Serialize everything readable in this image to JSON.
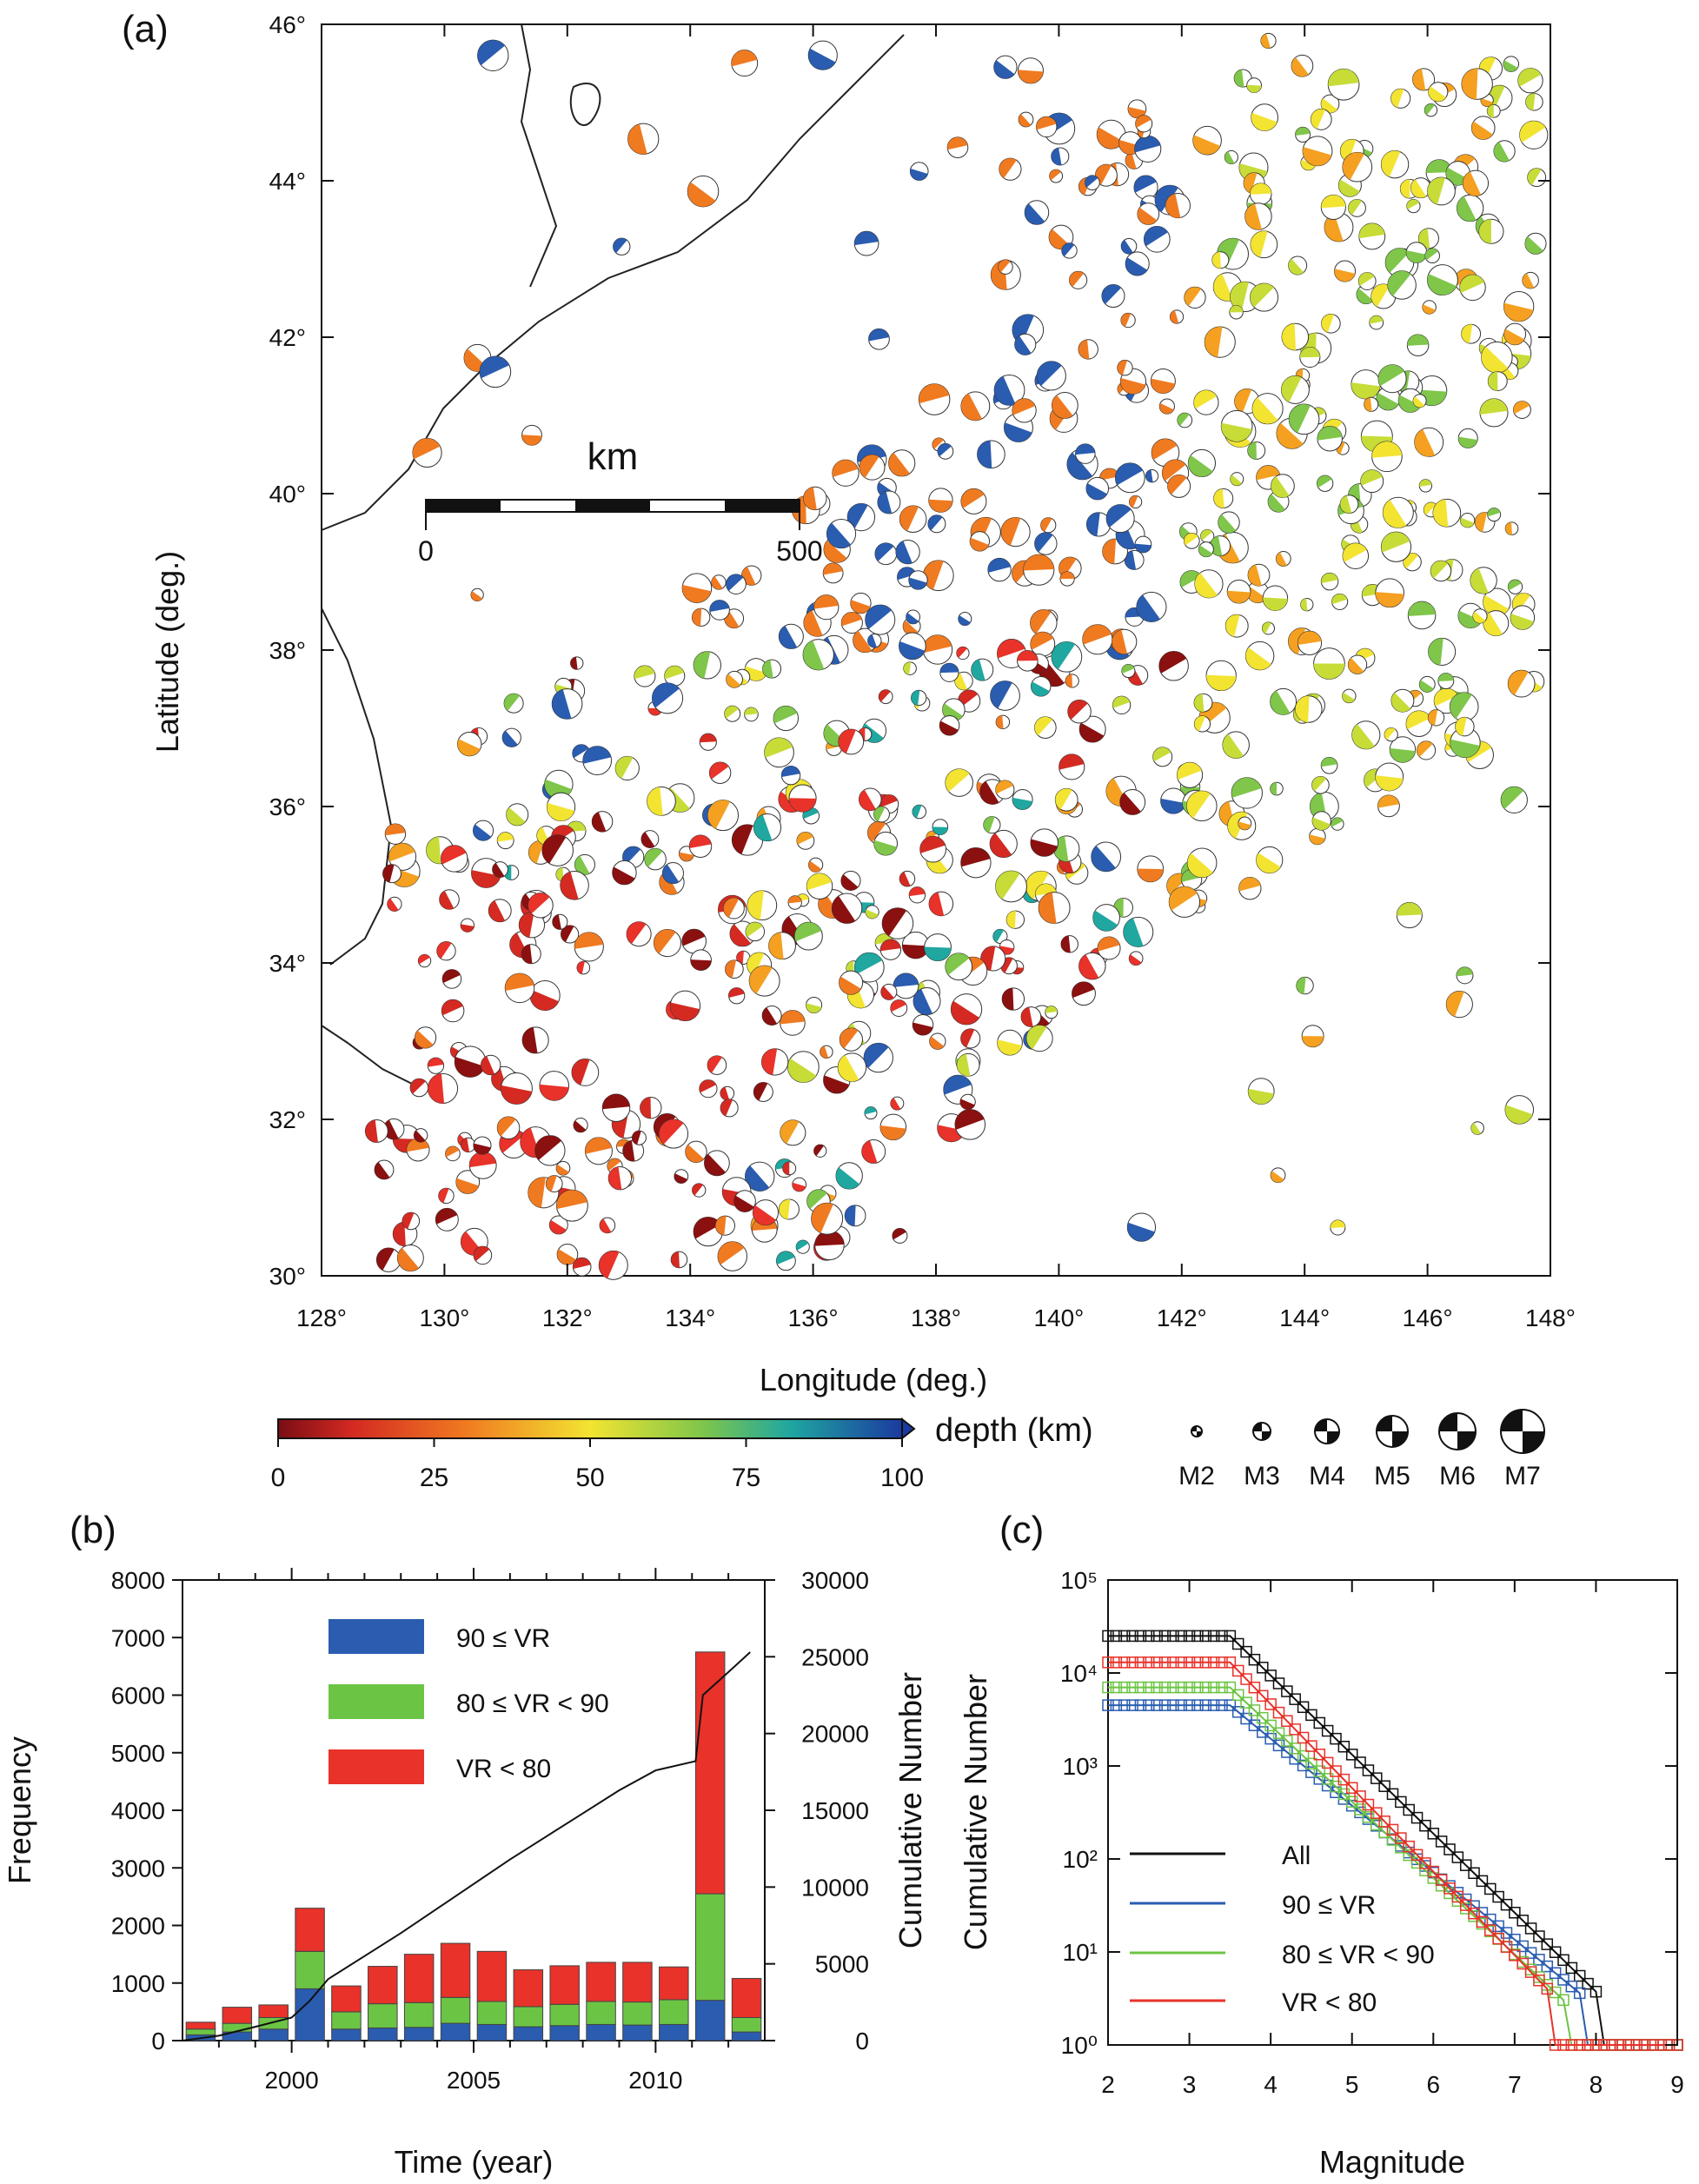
{
  "panels": {
    "a": {
      "label": "(a)",
      "xlabel": "Longitude (deg.)",
      "ylabel": "Latitude (deg.)",
      "x_ticks": [
        "128°",
        "130°",
        "132°",
        "134°",
        "136°",
        "138°",
        "140°",
        "142°",
        "144°",
        "146°",
        "148°"
      ],
      "y_ticks": [
        "30°",
        "32°",
        "34°",
        "36°",
        "38°",
        "40°",
        "42°",
        "44°",
        "46°"
      ],
      "scale_bar": {
        "unit": "km",
        "min_label": "0",
        "max_label": "500"
      },
      "colorbar": {
        "label": "depth (km)",
        "ticks": [
          "0",
          "25",
          "50",
          "75",
          "100"
        ]
      },
      "magnitude_legend": [
        "M2",
        "M3",
        "M4",
        "M5",
        "M6",
        "M7"
      ]
    },
    "b": {
      "label": "(b)",
      "xlabel": "Time (year)",
      "ylabel_left": "Frequency",
      "ylabel_right": "Cumulative Number",
      "x_ticks": [
        "2000",
        "2005",
        "2010"
      ],
      "y_ticks_left": [
        "0",
        "1000",
        "2000",
        "3000",
        "4000",
        "5000",
        "6000",
        "7000",
        "8000"
      ],
      "y_ticks_right": [
        "0",
        "5000",
        "10000",
        "15000",
        "20000",
        "25000",
        "30000"
      ],
      "legend": [
        "90 ≤ VR",
        "80 ≤ VR < 90",
        "VR < 80"
      ]
    },
    "c": {
      "label": "(c)",
      "xlabel": "Magnitude",
      "ylabel": "Cumulative Number",
      "x_ticks": [
        "2",
        "3",
        "4",
        "5",
        "6",
        "7",
        "8",
        "9"
      ],
      "y_ticks": [
        "10⁰",
        "10¹",
        "10²",
        "10³",
        "10⁴",
        "10⁵"
      ],
      "legend": [
        "All",
        "90 ≤ VR",
        "80 ≤ VR < 90",
        "VR < 80"
      ]
    }
  },
  "colors": {
    "vr90": "#2a5cb0",
    "vr80": "#6cc444",
    "vrlow": "#e8322a",
    "all": "#111111"
  },
  "chart_data": [
    {
      "type": "scatter",
      "title": "",
      "description_values": "focal mechanism solutions (beach balls) colored by depth",
      "xlim": [
        128,
        148
      ],
      "ylim": [
        30,
        46
      ],
      "depth_range_km": [
        0,
        100
      ]
    },
    {
      "type": "bar",
      "stacked": true,
      "categories": [
        1997,
        1998,
        1999,
        2000,
        2001,
        2002,
        2003,
        2004,
        2005,
        2006,
        2007,
        2008,
        2009,
        2010,
        2011,
        2012
      ],
      "series": [
        {
          "name": "90 ≤ VR",
          "values": [
            100,
            150,
            200,
            900,
            200,
            220,
            230,
            300,
            280,
            240,
            260,
            280,
            270,
            280,
            700,
            150
          ]
        },
        {
          "name": "80 ≤ VR < 90",
          "values": [
            100,
            150,
            200,
            650,
            300,
            420,
            430,
            450,
            400,
            350,
            370,
            400,
            400,
            430,
            1850,
            250
          ]
        },
        {
          "name": "VR < 80",
          "values": [
            120,
            280,
            220,
            750,
            450,
            650,
            840,
            940,
            870,
            640,
            670,
            680,
            690,
            570,
            4200,
            680
          ]
        }
      ],
      "cumulative_x": [
        1997,
        1998,
        1999,
        2000,
        2000.5,
        2001,
        2002,
        2003,
        2004,
        2005,
        2006,
        2007,
        2008,
        2009,
        2010,
        2011.1,
        2011.3,
        2012,
        2012.6
      ],
      "cumulative_y": [
        0,
        320,
        900,
        1500,
        2600,
        4000,
        5500,
        7000,
        8600,
        10200,
        11800,
        13300,
        14800,
        16300,
        17600,
        18200,
        22500,
        24000,
        25300
      ],
      "xlim": [
        1997,
        2013
      ],
      "ylim": [
        0,
        8000
      ],
      "ylim_right": [
        0,
        30000
      ]
    },
    {
      "type": "line",
      "log_y": true,
      "x": [
        2.0,
        2.1,
        2.2,
        2.3,
        2.4,
        2.5,
        2.6,
        2.7,
        2.8,
        2.9,
        3.0,
        3.1,
        3.2,
        3.3,
        3.4,
        3.5,
        3.6,
        3.7,
        3.8,
        3.9,
        4.0,
        4.1,
        4.2,
        4.3,
        4.4,
        4.5,
        4.6,
        4.7,
        4.8,
        4.9,
        5.0,
        5.1,
        5.2,
        5.3,
        5.4,
        5.5,
        5.6,
        5.7,
        5.8,
        5.9,
        6.0,
        6.1,
        6.2,
        6.3,
        6.4,
        6.5,
        6.6,
        6.7,
        6.8,
        6.9,
        7.0,
        7.1,
        7.2,
        7.3,
        7.4,
        7.5,
        7.6,
        7.7,
        7.8,
        7.9,
        8.0,
        8.1,
        8.2,
        8.3,
        8.4,
        8.5,
        8.6,
        8.7,
        8.8,
        8.9,
        9.0
      ],
      "series": [
        {
          "name": "All",
          "params": {
            "plateau": 25000,
            "knee": 3.5,
            "b": 0.85,
            "cutoff": 8.0
          }
        },
        {
          "name": "90 ≤ VR",
          "params": {
            "plateau": 4500,
            "knee": 3.5,
            "b": 0.72,
            "cutoff": 7.8
          }
        },
        {
          "name": "80 ≤ VR < 90",
          "params": {
            "plateau": 7000,
            "knee": 3.5,
            "b": 0.82,
            "cutoff": 7.6
          }
        },
        {
          "name": "VR < 80",
          "params": {
            "plateau": 13000,
            "knee": 3.5,
            "b": 0.9,
            "cutoff": 7.4
          }
        }
      ],
      "xlim": [
        2,
        9
      ],
      "ylim": [
        1,
        100000
      ]
    }
  ]
}
